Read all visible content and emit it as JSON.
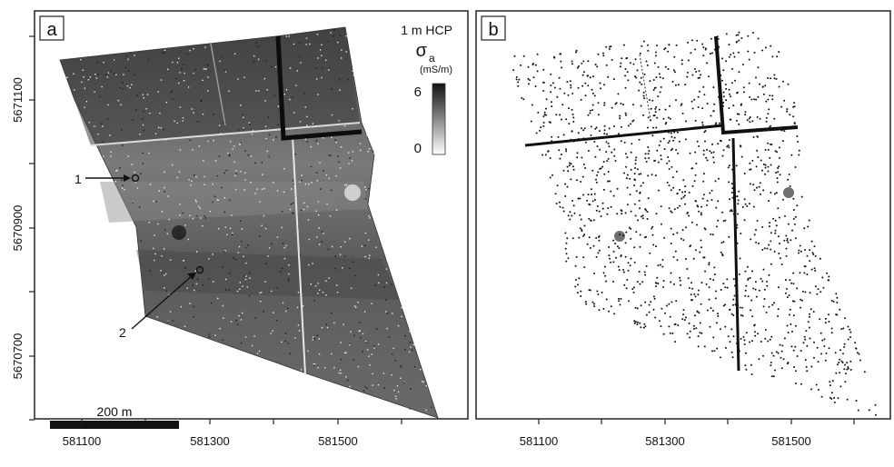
{
  "panels": [
    {
      "id": "a",
      "label": "a"
    },
    {
      "id": "b",
      "label": "b"
    }
  ],
  "x_ticks": [
    "581100",
    "581300",
    "581500"
  ],
  "y_ticks": [
    "5671100",
    "5670900",
    "5670700"
  ],
  "legend": {
    "title": "1 m HCP",
    "symbol": "σ",
    "subscript": "a",
    "unit": "(mS/m)",
    "max_label": "6",
    "min_label": "0",
    "colormap": [
      "#ffffff",
      "#111111"
    ]
  },
  "scale_bar": {
    "label": "200 m"
  },
  "markers": [
    {
      "label": "1"
    },
    {
      "label": "2"
    }
  ],
  "colors": {
    "frame": "#222222",
    "survey_dark": "#3e3e3e",
    "survey_mid": "#6a6a6a",
    "point": "#111111"
  }
}
